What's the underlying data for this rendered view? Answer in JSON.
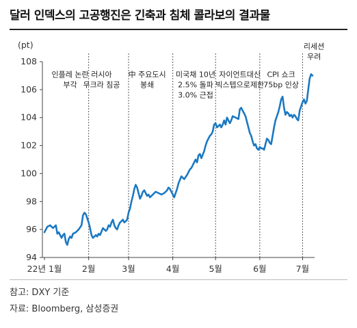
{
  "title": "달러 인덱스의 고공행진은 긴축과 침체 콜라보의 결과물",
  "footnote": "참고: DXY 기준",
  "source": "자료: Bloomberg, 삼성증권",
  "chart_data": {
    "type": "line",
    "ylabel": "(pt)",
    "ylim": [
      94,
      108
    ],
    "yticks": [
      "94",
      "96",
      "98",
      "100",
      "102",
      "104",
      "106",
      "108"
    ],
    "xticks": [
      {
        "label": "22년 1월",
        "x": 0
      },
      {
        "label": "2월",
        "x": 31
      },
      {
        "label": "3월",
        "x": 59
      },
      {
        "label": "4월",
        "x": 90
      },
      {
        "label": "5월",
        "x": 120
      },
      {
        "label": "6월",
        "x": 151
      },
      {
        "label": "7월",
        "x": 181
      }
    ],
    "grid": false,
    "series": [
      {
        "color": "#1a78c2",
        "points": [
          [
            0,
            95.8
          ],
          [
            2,
            96.2
          ],
          [
            4,
            96.3
          ],
          [
            6,
            96.1
          ],
          [
            8,
            96.3
          ],
          [
            9,
            95.7
          ],
          [
            10,
            95.8
          ],
          [
            11,
            95.6
          ],
          [
            12,
            95.4
          ],
          [
            13,
            95.6
          ],
          [
            14,
            95.7
          ],
          [
            15,
            95.1
          ],
          [
            16,
            94.9
          ],
          [
            17,
            95.3
          ],
          [
            18,
            95.5
          ],
          [
            19,
            95.4
          ],
          [
            20,
            95.7
          ],
          [
            22,
            95.8
          ],
          [
            24,
            96.0
          ],
          [
            26,
            96.3
          ],
          [
            27,
            97.0
          ],
          [
            28,
            97.2
          ],
          [
            29,
            97.1
          ],
          [
            30,
            96.8
          ],
          [
            31,
            96.5
          ],
          [
            32,
            96.1
          ],
          [
            33,
            95.6
          ],
          [
            34,
            95.4
          ],
          [
            35,
            95.5
          ],
          [
            36,
            95.6
          ],
          [
            37,
            95.5
          ],
          [
            38,
            95.7
          ],
          [
            39,
            95.6
          ],
          [
            41,
            96.1
          ],
          [
            42,
            96.0
          ],
          [
            43,
            95.9
          ],
          [
            44,
            96.0
          ],
          [
            45,
            96.3
          ],
          [
            46,
            96.2
          ],
          [
            47,
            96.5
          ],
          [
            48,
            96.7
          ],
          [
            49,
            96.3
          ],
          [
            50,
            96.1
          ],
          [
            51,
            96.0
          ],
          [
            52,
            96.3
          ],
          [
            53,
            96.5
          ],
          [
            54,
            96.6
          ],
          [
            55,
            96.7
          ],
          [
            56,
            96.5
          ],
          [
            57,
            96.6
          ],
          [
            58,
            96.7
          ],
          [
            59,
            97.2
          ],
          [
            60,
            97.5
          ],
          [
            61,
            98.0
          ],
          [
            62,
            98.4
          ],
          [
            63,
            98.9
          ],
          [
            64,
            99.2
          ],
          [
            65,
            99.0
          ],
          [
            66,
            98.6
          ],
          [
            67,
            98.2
          ],
          [
            68,
            98.4
          ],
          [
            69,
            98.7
          ],
          [
            70,
            98.8
          ],
          [
            71,
            98.6
          ],
          [
            72,
            98.4
          ],
          [
            73,
            98.5
          ],
          [
            74,
            98.3
          ],
          [
            76,
            98.5
          ],
          [
            78,
            98.7
          ],
          [
            80,
            98.6
          ],
          [
            82,
            98.5
          ],
          [
            84,
            98.6
          ],
          [
            86,
            98.8
          ],
          [
            87,
            99.0
          ],
          [
            88,
            98.9
          ],
          [
            89,
            98.7
          ],
          [
            90,
            98.5
          ],
          [
            91,
            98.3
          ],
          [
            92,
            98.6
          ],
          [
            93,
            98.9
          ],
          [
            94,
            99.3
          ],
          [
            96,
            99.8
          ],
          [
            98,
            99.6
          ],
          [
            100,
            99.9
          ],
          [
            101,
            100.1
          ],
          [
            102,
            100.3
          ],
          [
            103,
            100.4
          ],
          [
            104,
            100.6
          ],
          [
            105,
            100.8
          ],
          [
            106,
            101.0
          ],
          [
            107,
            100.8
          ],
          [
            108,
            101.3
          ],
          [
            109,
            101.4
          ],
          [
            110,
            101.1
          ],
          [
            112,
            101.6
          ],
          [
            113,
            102.0
          ],
          [
            114,
            102.3
          ],
          [
            115,
            102.5
          ],
          [
            116,
            102.7
          ],
          [
            117,
            102.8
          ],
          [
            118,
            103.0
          ],
          [
            119,
            103.5
          ],
          [
            120,
            103.6
          ],
          [
            121,
            103.3
          ],
          [
            122,
            103.4
          ],
          [
            123,
            103.5
          ],
          [
            124,
            103.3
          ],
          [
            125,
            103.5
          ],
          [
            126,
            103.8
          ],
          [
            127,
            103.5
          ],
          [
            128,
            104.0
          ],
          [
            129,
            103.8
          ],
          [
            130,
            103.6
          ],
          [
            131,
            103.8
          ],
          [
            132,
            104.1
          ],
          [
            134,
            104.0
          ],
          [
            136,
            103.9
          ],
          [
            137,
            104.6
          ],
          [
            138,
            104.7
          ],
          [
            139,
            104.5
          ],
          [
            141,
            104.1
          ],
          [
            142,
            103.7
          ],
          [
            143,
            103.3
          ],
          [
            144,
            102.9
          ],
          [
            145,
            102.7
          ],
          [
            146,
            102.3
          ],
          [
            147,
            102.0
          ],
          [
            148,
            102.1
          ],
          [
            149,
            101.8
          ],
          [
            150,
            101.7
          ],
          [
            151,
            101.9
          ],
          [
            152,
            101.8
          ],
          [
            153,
            101.8
          ],
          [
            154,
            101.7
          ],
          [
            155,
            102.1
          ],
          [
            156,
            102.5
          ],
          [
            157,
            102.4
          ],
          [
            158,
            102.2
          ],
          [
            159,
            102.1
          ],
          [
            160,
            102.7
          ],
          [
            161,
            103.3
          ],
          [
            162,
            103.8
          ],
          [
            163,
            104.1
          ],
          [
            164,
            104.4
          ],
          [
            165,
            104.8
          ],
          [
            166,
            105.3
          ],
          [
            167,
            105.5
          ],
          [
            168,
            104.7
          ],
          [
            169,
            104.2
          ],
          [
            170,
            104.4
          ],
          [
            171,
            104.3
          ],
          [
            172,
            104.1
          ],
          [
            173,
            104.2
          ],
          [
            174,
            104.0
          ],
          [
            175,
            104.2
          ],
          [
            176,
            104.1
          ],
          [
            177,
            103.9
          ],
          [
            178,
            103.8
          ],
          [
            179,
            104.5
          ],
          [
            180,
            104.8
          ],
          [
            181,
            105.1
          ],
          [
            182,
            105.3
          ],
          [
            183,
            105.0
          ],
          [
            184,
            105.2
          ],
          [
            185,
            106.0
          ],
          [
            186,
            106.8
          ],
          [
            187,
            107.1
          ],
          [
            188,
            107.0
          ]
        ]
      }
    ],
    "annotations": [
      {
        "text": [
          "인플레 논란",
          "부각"
        ],
        "x": 18,
        "line_x": null,
        "y": 106.9
      },
      {
        "text": [
          "러시아",
          "우크라 침공"
        ],
        "x": 40,
        "line_x": 31,
        "y": 106.9
      },
      {
        "text": [
          "中 주요도시",
          "봉쇄"
        ],
        "x": 72,
        "line_x": 59,
        "y": 106.9
      },
      {
        "text": [
          "미국채 10년",
          "2.5% 돌파",
          "3.0% 근접"
        ],
        "x": 106,
        "line_x": 90,
        "y": 106.9
      },
      {
        "text": [
          "자이언트대신",
          "빅스텝으로제한"
        ],
        "x": 137,
        "line_x": 120,
        "y": 106.9
      },
      {
        "text": [
          "CPI 쇼크",
          "75bp 인상"
        ],
        "x": 166,
        "line_x": 151,
        "y": 106.9
      },
      {
        "text": [
          "리세션",
          "우려"
        ],
        "x": 189,
        "line_x": 181,
        "y": 108.9
      }
    ]
  }
}
